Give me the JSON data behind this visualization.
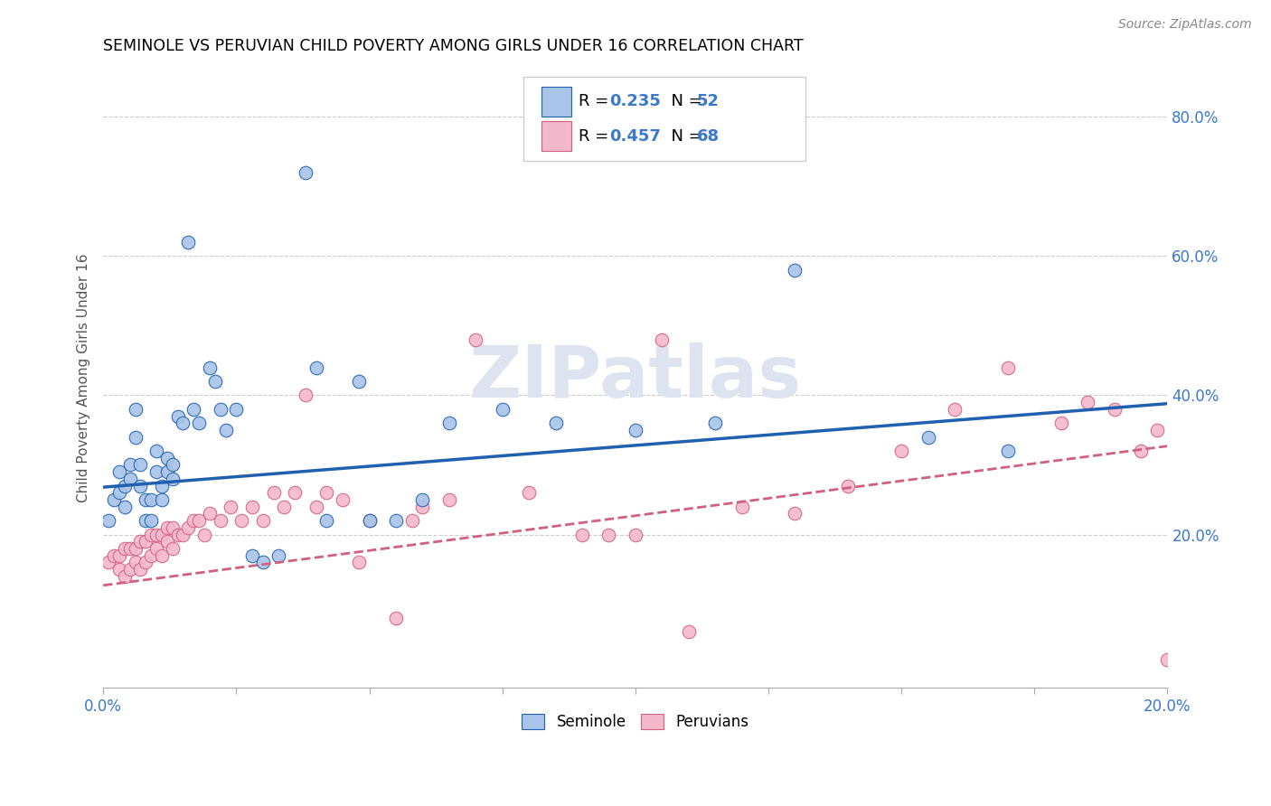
{
  "title": "SEMINOLE VS PERUVIAN CHILD POVERTY AMONG GIRLS UNDER 16 CORRELATION CHART",
  "source": "Source: ZipAtlas.com",
  "ylabel": "Child Poverty Among Girls Under 16",
  "xlim": [
    0.0,
    0.2
  ],
  "ylim": [
    -0.02,
    0.87
  ],
  "xticks": [
    0.0,
    0.025,
    0.05,
    0.075,
    0.1,
    0.125,
    0.15,
    0.175,
    0.2
  ],
  "yticks_right": [
    0.2,
    0.4,
    0.6,
    0.8
  ],
  "ytick_right_labels": [
    "20.0%",
    "40.0%",
    "60.0%",
    "80.0%"
  ],
  "seminole_color": "#a8c4e8",
  "peruvian_color": "#f4b8cc",
  "seminole_line_color": "#2060b0",
  "peruvian_line_color": "#d06080",
  "watermark": "ZIPatlas",
  "watermark_color": "#dde4f0",
  "blue_intercept": 0.268,
  "blue_slope": 0.6,
  "pink_intercept": 0.127,
  "pink_slope": 1.0,
  "seminole_x": [
    0.001,
    0.002,
    0.003,
    0.003,
    0.004,
    0.004,
    0.005,
    0.005,
    0.006,
    0.006,
    0.007,
    0.007,
    0.008,
    0.008,
    0.009,
    0.009,
    0.01,
    0.01,
    0.011,
    0.011,
    0.012,
    0.012,
    0.013,
    0.013,
    0.014,
    0.015,
    0.016,
    0.017,
    0.018,
    0.02,
    0.021,
    0.022,
    0.023,
    0.025,
    0.028,
    0.03,
    0.033,
    0.038,
    0.04,
    0.042,
    0.048,
    0.05,
    0.055,
    0.06,
    0.065,
    0.075,
    0.085,
    0.1,
    0.115,
    0.13,
    0.155,
    0.17
  ],
  "seminole_y": [
    0.22,
    0.25,
    0.26,
    0.29,
    0.24,
    0.27,
    0.28,
    0.3,
    0.34,
    0.38,
    0.27,
    0.3,
    0.22,
    0.25,
    0.22,
    0.25,
    0.29,
    0.32,
    0.25,
    0.27,
    0.29,
    0.31,
    0.28,
    0.3,
    0.37,
    0.36,
    0.62,
    0.38,
    0.36,
    0.44,
    0.42,
    0.38,
    0.35,
    0.38,
    0.17,
    0.16,
    0.17,
    0.72,
    0.44,
    0.22,
    0.42,
    0.22,
    0.22,
    0.25,
    0.36,
    0.38,
    0.36,
    0.35,
    0.36,
    0.58,
    0.34,
    0.32
  ],
  "peruvian_x": [
    0.001,
    0.002,
    0.003,
    0.003,
    0.004,
    0.004,
    0.005,
    0.005,
    0.006,
    0.006,
    0.007,
    0.007,
    0.008,
    0.008,
    0.009,
    0.009,
    0.01,
    0.01,
    0.011,
    0.011,
    0.012,
    0.012,
    0.013,
    0.013,
    0.014,
    0.015,
    0.016,
    0.017,
    0.018,
    0.019,
    0.02,
    0.022,
    0.024,
    0.026,
    0.028,
    0.03,
    0.032,
    0.034,
    0.036,
    0.038,
    0.04,
    0.042,
    0.045,
    0.048,
    0.05,
    0.055,
    0.058,
    0.06,
    0.065,
    0.07,
    0.08,
    0.09,
    0.095,
    0.1,
    0.105,
    0.11,
    0.12,
    0.13,
    0.14,
    0.15,
    0.16,
    0.17,
    0.18,
    0.185,
    0.19,
    0.195,
    0.198,
    0.2
  ],
  "peruvian_y": [
    0.16,
    0.17,
    0.15,
    0.17,
    0.14,
    0.18,
    0.15,
    0.18,
    0.16,
    0.18,
    0.15,
    0.19,
    0.16,
    0.19,
    0.17,
    0.2,
    0.18,
    0.2,
    0.17,
    0.2,
    0.19,
    0.21,
    0.18,
    0.21,
    0.2,
    0.2,
    0.21,
    0.22,
    0.22,
    0.2,
    0.23,
    0.22,
    0.24,
    0.22,
    0.24,
    0.22,
    0.26,
    0.24,
    0.26,
    0.4,
    0.24,
    0.26,
    0.25,
    0.16,
    0.22,
    0.08,
    0.22,
    0.24,
    0.25,
    0.48,
    0.26,
    0.2,
    0.2,
    0.2,
    0.48,
    0.06,
    0.24,
    0.23,
    0.27,
    0.32,
    0.38,
    0.44,
    0.36,
    0.39,
    0.38,
    0.32,
    0.35,
    0.02
  ]
}
